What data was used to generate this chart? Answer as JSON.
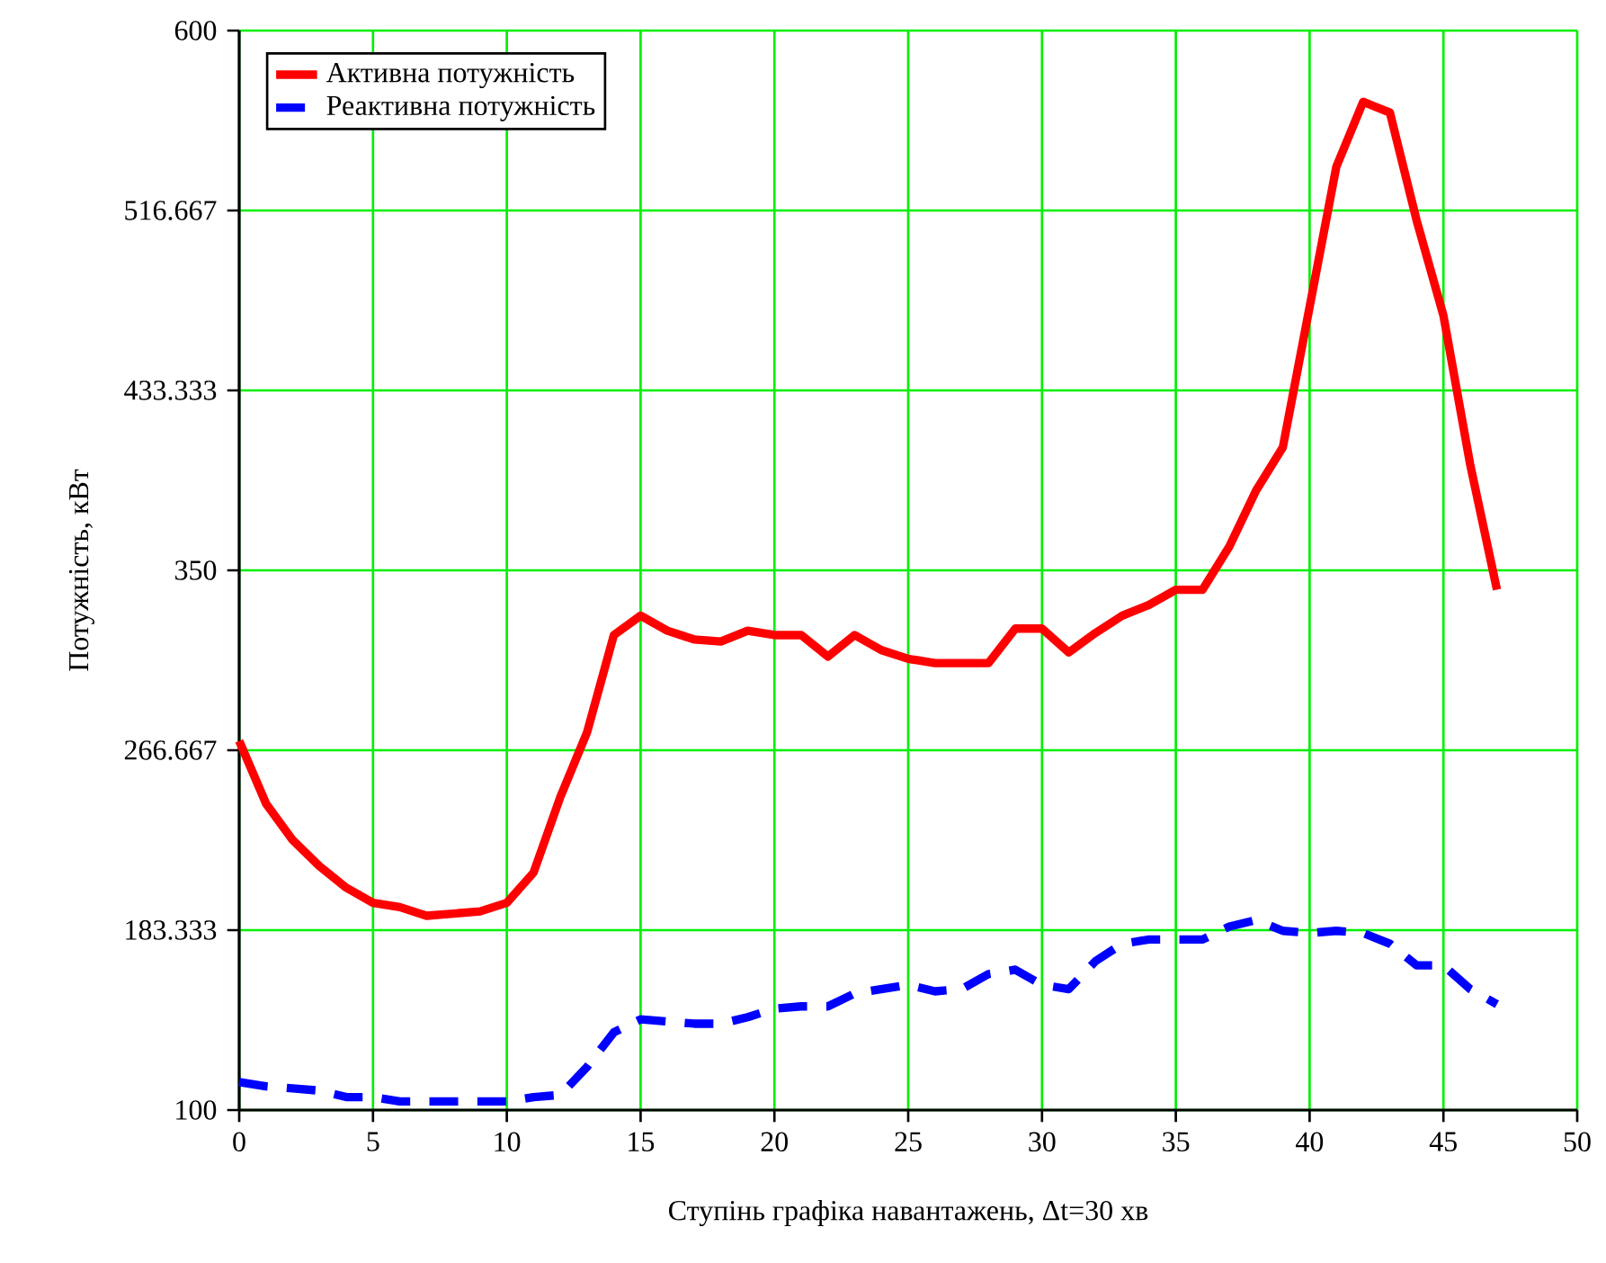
{
  "chart_data": {
    "type": "line",
    "xlabel": "Ступінь графіка навантажень, Δt=30 хв",
    "ylabel": "Потужність, кВт",
    "x": [
      0,
      1,
      2,
      3,
      4,
      5,
      6,
      7,
      8,
      9,
      10,
      11,
      12,
      13,
      14,
      15,
      16,
      17,
      18,
      19,
      20,
      21,
      22,
      23,
      24,
      25,
      26,
      27,
      28,
      29,
      30,
      31,
      32,
      33,
      34,
      35,
      36,
      37,
      38,
      39,
      40,
      41,
      42,
      43,
      44,
      45,
      46,
      47
    ],
    "series": [
      {
        "name": "Активна потужність",
        "color": "#ff0000",
        "line_style": "solid",
        "values": [
          271,
          242,
          225,
          213,
          203,
          196,
          194,
          190,
          191,
          192,
          196,
          210,
          245,
          275,
          320,
          329,
          322,
          318,
          317,
          322,
          320,
          320,
          310,
          320,
          313,
          309,
          307,
          307,
          307,
          323,
          323,
          312,
          321,
          329,
          334,
          341,
          341,
          361,
          387,
          407,
          472,
          537,
          567,
          562,
          512,
          468,
          399,
          341
        ]
      },
      {
        "name": "Реактивна потужність",
        "color": "#0000ff",
        "line_style": "dashed",
        "values": [
          113,
          111,
          110,
          109,
          106,
          106,
          104,
          104,
          104,
          104,
          104,
          106,
          107,
          120,
          136,
          142,
          141,
          140,
          140,
          143,
          147,
          148,
          148,
          154,
          156,
          158,
          155,
          156,
          163,
          165,
          158,
          156,
          169,
          177,
          179,
          179,
          179,
          185,
          188,
          183,
          182,
          183,
          182,
          177,
          167,
          167,
          156,
          149
        ]
      }
    ],
    "xlim": [
      0,
      50
    ],
    "ylim": [
      100,
      600
    ],
    "xticks": [
      0,
      5,
      10,
      15,
      20,
      25,
      30,
      35,
      40,
      45,
      50
    ],
    "yticks": [
      100,
      183.333,
      266.667,
      350,
      433.333,
      516.667,
      600
    ],
    "grid": true,
    "legend": "top left"
  }
}
